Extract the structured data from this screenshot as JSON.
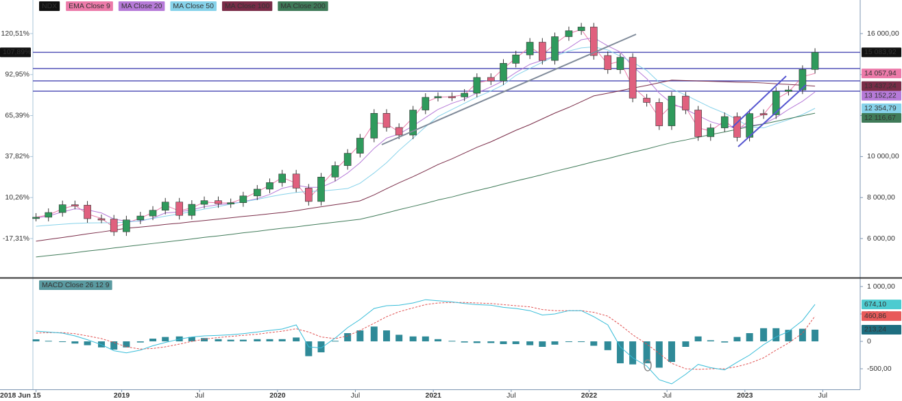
{
  "chart_data": [
    {
      "type": "candlestick",
      "title": "NDX",
      "title_color": "#111111",
      "x": [
        2018.45,
        2018.53,
        2018.62,
        2018.7,
        2018.78,
        2018.87,
        2018.95,
        2019.03,
        2019.12,
        2019.2,
        2019.28,
        2019.37,
        2019.45,
        2019.53,
        2019.62,
        2019.7,
        2019.78,
        2019.87,
        2019.95,
        2020.03,
        2020.12,
        2020.2,
        2020.28,
        2020.37,
        2020.45,
        2020.53,
        2020.62,
        2020.7,
        2020.78,
        2020.87,
        2020.95,
        2021.03,
        2021.12,
        2021.2,
        2021.28,
        2021.37,
        2021.45,
        2021.53,
        2021.62,
        2021.7,
        2021.78,
        2021.87,
        2021.95,
        2022.03,
        2022.12,
        2022.2,
        2022.28,
        2022.37,
        2022.45,
        2022.53,
        2022.62,
        2022.7,
        2022.78,
        2022.87,
        2022.95,
        2023.03,
        2023.12,
        2023.2,
        2023.28,
        2023.37,
        2023.45
      ],
      "close": [
        7040,
        7270,
        7650,
        7630,
        6970,
        6950,
        6330,
        6910,
        7100,
        7380,
        7780,
        7130,
        7670,
        7850,
        7700,
        7750,
        8080,
        8410,
        8730,
        9150,
        8460,
        7810,
        9000,
        9560,
        10160,
        10900,
        12110,
        11420,
        11050,
        12270,
        12890,
        12930,
        12910,
        13090,
        13860,
        13690,
        14550,
        14960,
        15580,
        14690,
        15850,
        16140,
        16320,
        14930,
        14240,
        14840,
        12850,
        12640,
        11500,
        12950,
        12270,
        10970,
        11400,
        11950,
        10940,
        12100,
        12040,
        13180,
        13250,
        14250,
        15083.92
      ],
      "close_label": "15 083,92",
      "up_color": "#2f9a5c",
      "down_color": "#e0607e",
      "series": [
        {
          "name": "EMA Close 9",
          "color": "#ec7aa9",
          "last_label": "14 057,94",
          "values": [
            7040,
            7150,
            7450,
            7620,
            7200,
            6980,
            6550,
            6750,
            7000,
            7270,
            7620,
            7350,
            7500,
            7780,
            7740,
            7740,
            7950,
            8280,
            8600,
            8980,
            8700,
            7950,
            8600,
            9350,
            9950,
            10600,
            11650,
            11600,
            11200,
            11900,
            12650,
            12900,
            12920,
            13020,
            13600,
            13720,
            14300,
            14800,
            15350,
            14950,
            15500,
            16000,
            16200,
            15350,
            14500,
            14650,
            13400,
            12800,
            11900,
            12500,
            12400,
            11400,
            11250,
            11750,
            11250,
            11800,
            12050,
            12800,
            13150,
            13900,
            14057.94
          ]
        },
        {
          "name": "MA Close 20",
          "color": "#b67ad8",
          "last_label": "13 152,22",
          "values": [
            7000,
            7100,
            7300,
            7450,
            7400,
            7250,
            6950,
            6850,
            6850,
            7000,
            7250,
            7300,
            7400,
            7550,
            7650,
            7700,
            7800,
            7950,
            8150,
            8450,
            8600,
            8500,
            8500,
            8800,
            9200,
            9700,
            10400,
            10900,
            11100,
            11500,
            11900,
            12300,
            12600,
            12800,
            13100,
            13400,
            13700,
            14100,
            14500,
            14700,
            14900,
            15300,
            15700,
            15800,
            15400,
            15100,
            14400,
            13800,
            13100,
            12600,
            12300,
            12000,
            11700,
            11500,
            11400,
            11500,
            11600,
            11900,
            12300,
            12700,
            13152.22
          ]
        },
        {
          "name": "MA Close 50",
          "color": "#86d2ea",
          "last_label": "12 354,79",
          "values": [
            6600,
            6650,
            6700,
            6740,
            6760,
            6770,
            6770,
            6800,
            6880,
            6980,
            7090,
            7200,
            7320,
            7440,
            7560,
            7680,
            7790,
            7910,
            8040,
            8150,
            8250,
            8300,
            8320,
            8380,
            8440,
            8700,
            9200,
            9700,
            10300,
            10900,
            11450,
            11950,
            12300,
            12600,
            12900,
            13200,
            13500,
            13960,
            14300,
            14600,
            14900,
            15150,
            15300,
            15350,
            15200,
            14900,
            14600,
            14200,
            13620,
            13300,
            13000,
            12700,
            12400,
            12120,
            11800,
            11450,
            11400,
            11600,
            11800,
            12050,
            12354.79
          ]
        },
        {
          "name": "MA Close 100",
          "color": "#7a2c48",
          "last_label": "13 437,24",
          "values": [
            5870,
            5960,
            6050,
            6140,
            6230,
            6320,
            6410,
            6500,
            6560,
            6620,
            6690,
            6750,
            6820,
            6880,
            6950,
            7010,
            7080,
            7140,
            7210,
            7270,
            7360,
            7460,
            7550,
            7650,
            7740,
            7840,
            8130,
            8430,
            8720,
            9020,
            9310,
            9610,
            9890,
            10170,
            10450,
            10720,
            11000,
            11280,
            11560,
            11840,
            12120,
            12400,
            12680,
            12960,
            13090,
            13210,
            13340,
            13470,
            13600,
            13730,
            13710,
            13690,
            13670,
            13650,
            13630,
            13620,
            13590,
            13550,
            13520,
            13480,
            13437.24
          ]
        },
        {
          "name": "MA Close 200",
          "color": "#3f7a58",
          "last_label": "12 116,67",
          "values": [
            5100,
            5170,
            5240,
            5310,
            5390,
            5460,
            5540,
            5610,
            5690,
            5760,
            5830,
            5910,
            5980,
            6060,
            6130,
            6200,
            6280,
            6350,
            6430,
            6500,
            6570,
            6650,
            6720,
            6800,
            6870,
            6940,
            7100,
            7250,
            7410,
            7570,
            7720,
            7880,
            8030,
            8190,
            8340,
            8500,
            8660,
            8810,
            8970,
            9120,
            9280,
            9440,
            9590,
            9750,
            9900,
            10060,
            10210,
            10370,
            10530,
            10680,
            10810,
            10940,
            11070,
            11200,
            11330,
            11460,
            11590,
            11720,
            11850,
            11990,
            12116.67
          ]
        }
      ],
      "levels": [
        15083.92,
        14294,
        13692,
        13191
      ],
      "level_color": "#5555b8",
      "ylim": [
        4094,
        17638.8
      ],
      "yticks": [
        {
          "value": 16000,
          "label": "16 000,00"
        },
        {
          "value": 14000,
          "label": "14 000,00"
        },
        {
          "value": 12000,
          "label": "12 000,00"
        },
        {
          "value": 10000,
          "label": "10 000,00"
        },
        {
          "value": 8000,
          "label": "8 000,00"
        },
        {
          "value": 6000,
          "label": "6 000,00"
        }
      ],
      "y2lim": [
        -43.58,
        143.09
      ],
      "y2ticks": [
        {
          "value": 120.51,
          "label": "120,51%"
        },
        {
          "value": 92.95,
          "label": "92,95%"
        },
        {
          "value": 65.39,
          "label": "65,39%"
        },
        {
          "value": 37.82,
          "label": "37,82%"
        },
        {
          "value": 10.26,
          "label": "10,26%"
        },
        {
          "value": -17.31,
          "label": "-17,31%"
        }
      ],
      "y2_current": {
        "value": 107.89,
        "label": "107,89%"
      },
      "xlim": [
        2018.43,
        2023.74
      ],
      "xticks": [
        {
          "value": 2018.45,
          "label": "2018 Jun 15"
        },
        {
          "value": 2019,
          "label": "2019"
        },
        {
          "value": 2019.5,
          "label": "Jul"
        },
        {
          "value": 2020,
          "label": "2020"
        },
        {
          "value": 2020.5,
          "label": "Jul"
        },
        {
          "value": 2021,
          "label": "2021"
        },
        {
          "value": 2021.5,
          "label": "Jul"
        },
        {
          "value": 2022,
          "label": "2022"
        },
        {
          "value": 2022.5,
          "label": "Jul"
        },
        {
          "value": 2023,
          "label": "2023"
        },
        {
          "value": 2023.5,
          "label": "Jul"
        }
      ]
    },
    {
      "type": "macd",
      "title": "MACD Close 26 12 9",
      "title_color": "#5a9aa0",
      "macd": {
        "color": "#36bcd8",
        "label_color": "#4ccbd0",
        "last_label": "674,10",
        "values": [
          187,
          170,
          150,
          100,
          30,
          -60,
          -170,
          -210,
          -160,
          -80,
          -20,
          40,
          80,
          100,
          110,
          120,
          140,
          170,
          200,
          225,
          300,
          -100,
          -120,
          60,
          250,
          400,
          600,
          650,
          660,
          700,
          760,
          740,
          720,
          690,
          670,
          660,
          620,
          600,
          560,
          480,
          500,
          560,
          560,
          450,
          300,
          -100,
          -300,
          -450,
          -700,
          -775,
          -600,
          -420,
          -480,
          -520,
          -380,
          -250,
          -60,
          80,
          180,
          380,
          674.1
        ]
      },
      "signal": {
        "color": "#e05050",
        "label_color": "#e85a5a",
        "last_label": "460,86",
        "values": [
          150,
          160,
          160,
          140,
          100,
          50,
          -20,
          -100,
          -140,
          -130,
          -100,
          -50,
          0,
          40,
          70,
          90,
          110,
          130,
          160,
          185,
          230,
          170,
          80,
          50,
          100,
          200,
          330,
          450,
          540,
          610,
          670,
          700,
          710,
          710,
          700,
          690,
          670,
          650,
          630,
          580,
          560,
          560,
          560,
          530,
          460,
          300,
          120,
          -50,
          -220,
          -400,
          -500,
          -510,
          -500,
          -500,
          -460,
          -400,
          -300,
          -160,
          -30,
          150,
          460.86
        ]
      },
      "histogram": {
        "color": "#2f8a98",
        "label_color": "#1e6e80",
        "last_label": "213,24",
        "values": [
          37,
          10,
          -10,
          -40,
          -70,
          -110,
          -150,
          -110,
          -20,
          50,
          80,
          90,
          80,
          60,
          40,
          30,
          30,
          40,
          40,
          40,
          70,
          -270,
          -200,
          10,
          150,
          200,
          270,
          200,
          120,
          90,
          90,
          40,
          10,
          -20,
          -30,
          -30,
          -50,
          -50,
          -70,
          -100,
          -60,
          0,
          0,
          -80,
          -160,
          -400,
          -420,
          -400,
          -480,
          -375,
          -100,
          90,
          20,
          -20,
          80,
          150,
          240,
          240,
          210,
          230,
          213.24
        ]
      },
      "ylim": [
        -875,
        1137.5
      ],
      "yticks": [
        {
          "value": 1000,
          "label": "1 000,00"
        },
        {
          "value": 500,
          "label": "500,00"
        },
        0,
        {
          "value": -500,
          "label": "-500,00"
        }
      ]
    }
  ]
}
